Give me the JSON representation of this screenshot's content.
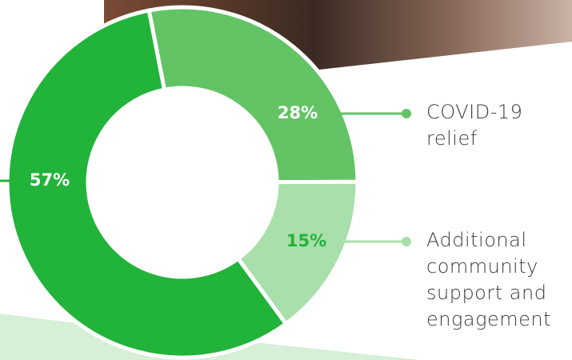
{
  "chart_data": {
    "type": "donut",
    "categories": [
      null,
      "COVID-19 relief",
      "Additional community support and engagement"
    ],
    "values": [
      57,
      28,
      15
    ],
    "value_labels": [
      "57%",
      "28%",
      "15%"
    ],
    "colors": [
      "#22b33a",
      "#63c466",
      "#a8dfaa"
    ]
  }
}
